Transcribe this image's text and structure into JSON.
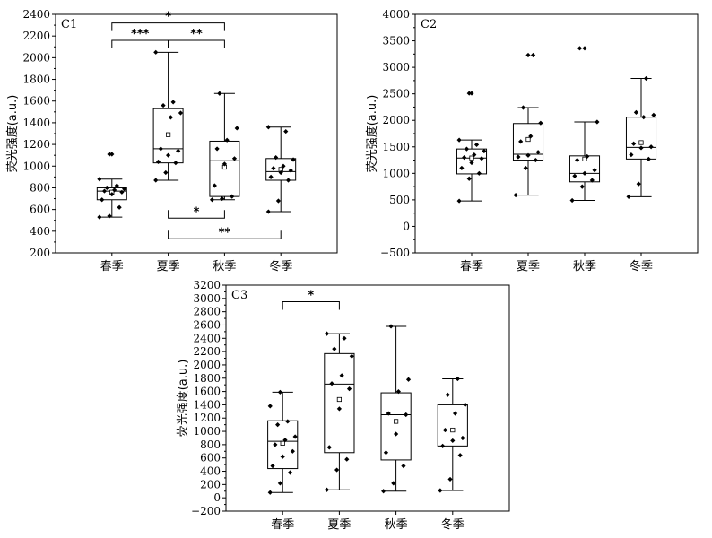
{
  "chart_data": [
    {
      "type": "box",
      "panel_label": "C1",
      "ylabel": "荧光强度(a.u.)",
      "categories": [
        "春季",
        "夏季",
        "秋季",
        "冬季"
      ],
      "ylim": [
        200,
        2400
      ],
      "yticks": [
        200,
        400,
        600,
        800,
        1000,
        1200,
        1400,
        1600,
        1800,
        2000,
        2200,
        2400
      ],
      "boxes": [
        {
          "category": "春季",
          "min": 530,
          "q1": 690,
          "median": 770,
          "q3": 800,
          "max": 880,
          "mean": 760,
          "outliers": [
            1110
          ],
          "points": [
            530,
            540,
            620,
            690,
            740,
            760,
            770,
            780,
            790,
            800,
            820,
            880,
            1110
          ]
        },
        {
          "category": "夏季",
          "min": 870,
          "q1": 1030,
          "median": 1160,
          "q3": 1530,
          "max": 2050,
          "mean": 1290,
          "outliers": [],
          "points": [
            870,
            940,
            1030,
            1040,
            1100,
            1140,
            1160,
            1450,
            1490,
            1560,
            1590,
            2050
          ]
        },
        {
          "category": "秋季",
          "min": 690,
          "q1": 720,
          "median": 1050,
          "q3": 1230,
          "max": 1670,
          "mean": 990,
          "outliers": [],
          "points": [
            690,
            700,
            720,
            820,
            1020,
            1070,
            1160,
            1240,
            1350,
            1670
          ]
        },
        {
          "category": "冬季",
          "min": 580,
          "q1": 870,
          "median": 950,
          "q3": 1070,
          "max": 1360,
          "mean": 970,
          "outliers": [],
          "points": [
            580,
            680,
            870,
            900,
            940,
            960,
            980,
            1000,
            1060,
            1080,
            1320,
            1360
          ]
        }
      ],
      "significance": [
        {
          "from": "春季",
          "to": "秋季",
          "label": "*",
          "level": 2320,
          "side": "top"
        },
        {
          "from": "春季",
          "to": "夏季",
          "label": "***",
          "level": 2160,
          "side": "top"
        },
        {
          "from": "夏季",
          "to": "秋季",
          "label": "**",
          "level": 2160,
          "side": "top"
        },
        {
          "from": "夏季",
          "to": "秋季",
          "label": "*",
          "level": 520,
          "side": "bottom"
        },
        {
          "from": "夏季",
          "to": "冬季",
          "label": "**",
          "level": 330,
          "side": "bottom"
        }
      ]
    },
    {
      "type": "box",
      "panel_label": "C2",
      "ylabel": "荧光强度(a.u.)",
      "categories": [
        "春季",
        "夏季",
        "秋季",
        "冬季"
      ],
      "ylim": [
        -500,
        4000
      ],
      "yticks": [
        -500,
        0,
        500,
        1000,
        1500,
        2000,
        2500,
        3000,
        3500,
        4000
      ],
      "boxes": [
        {
          "category": "春季",
          "min": 480,
          "q1": 990,
          "median": 1290,
          "q3": 1460,
          "max": 1630,
          "mean": 1290,
          "outliers": [
            2510
          ],
          "points": [
            480,
            900,
            1000,
            1100,
            1200,
            1280,
            1300,
            1350,
            1420,
            1460,
            1540,
            1630,
            2510
          ]
        },
        {
          "category": "夏季",
          "min": 590,
          "q1": 1250,
          "median": 1360,
          "q3": 1940,
          "max": 2240,
          "mean": 1640,
          "outliers": [
            3230
          ],
          "points": [
            590,
            1100,
            1250,
            1310,
            1340,
            1400,
            1600,
            1700,
            1950,
            2240,
            3230
          ]
        },
        {
          "category": "秋季",
          "min": 490,
          "q1": 840,
          "median": 1000,
          "q3": 1330,
          "max": 1970,
          "mean": 1270,
          "outliers": [
            3360
          ],
          "points": [
            490,
            750,
            870,
            950,
            1000,
            1060,
            1250,
            1320,
            1970,
            3360
          ]
        },
        {
          "category": "冬季",
          "min": 560,
          "q1": 1270,
          "median": 1490,
          "q3": 2060,
          "max": 2790,
          "mean": 1580,
          "outliers": [],
          "points": [
            560,
            800,
            1270,
            1350,
            1480,
            1500,
            1560,
            2060,
            2100,
            2150,
            2790
          ]
        }
      ],
      "significance": []
    },
    {
      "type": "box",
      "panel_label": "C3",
      "ylabel": "荧光强度(a.u.)",
      "categories": [
        "春季",
        "夏季",
        "秋季",
        "冬季"
      ],
      "ylim": [
        -200,
        3200
      ],
      "yticks": [
        -200,
        0,
        200,
        400,
        600,
        800,
        1000,
        1200,
        1400,
        1600,
        1800,
        2000,
        2200,
        2400,
        2600,
        2800,
        3000,
        3200
      ],
      "boxes": [
        {
          "category": "春季",
          "min": 80,
          "q1": 440,
          "median": 850,
          "q3": 1160,
          "max": 1590,
          "mean": 820,
          "outliers": [],
          "points": [
            80,
            220,
            380,
            480,
            620,
            700,
            800,
            870,
            920,
            1100,
            1150,
            1380,
            1590
          ]
        },
        {
          "category": "夏季",
          "min": 120,
          "q1": 680,
          "median": 1710,
          "q3": 2170,
          "max": 2470,
          "mean": 1480,
          "outliers": [],
          "points": [
            120,
            420,
            580,
            760,
            1340,
            1640,
            1720,
            1840,
            2130,
            2240,
            2400,
            2470
          ]
        },
        {
          "category": "秋季",
          "min": 100,
          "q1": 570,
          "median": 1250,
          "q3": 1580,
          "max": 2580,
          "mean": 1150,
          "outliers": [],
          "points": [
            100,
            220,
            480,
            680,
            960,
            1250,
            1270,
            1600,
            1780,
            2580
          ]
        },
        {
          "category": "冬季",
          "min": 110,
          "q1": 780,
          "median": 900,
          "q3": 1400,
          "max": 1790,
          "mean": 1020,
          "outliers": [],
          "points": [
            110,
            280,
            640,
            780,
            860,
            900,
            1020,
            1270,
            1400,
            1550,
            1790
          ]
        }
      ],
      "significance": [
        {
          "from": "春季",
          "to": "夏季",
          "label": "*",
          "level": 2950,
          "side": "top"
        }
      ]
    }
  ]
}
